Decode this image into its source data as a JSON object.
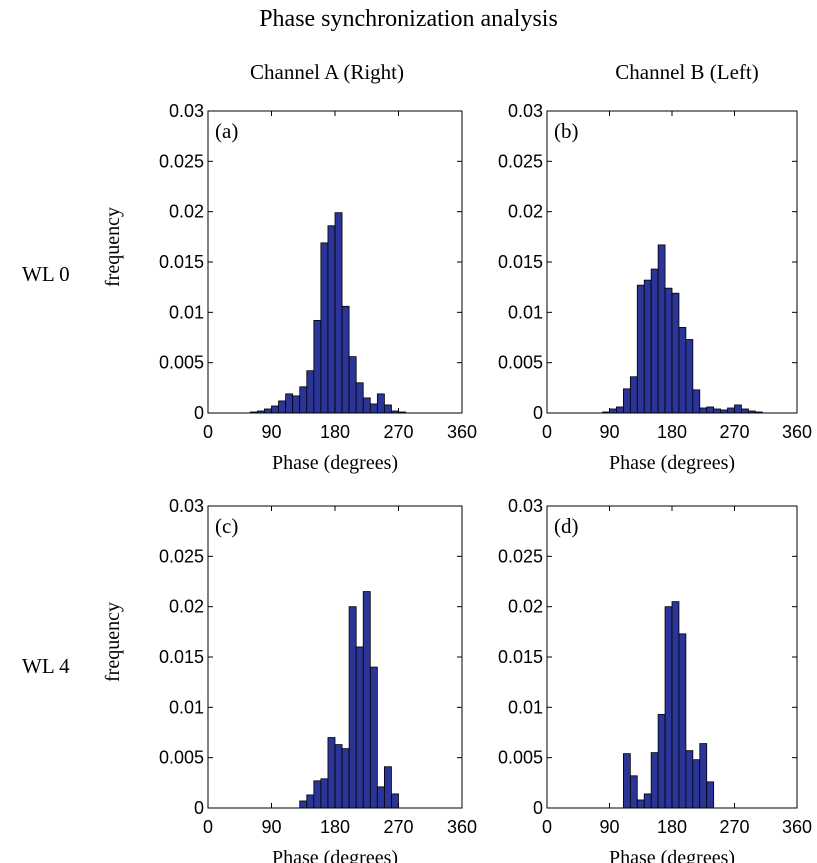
{
  "title": "Phase synchronization analysis",
  "column_labels": [
    "Channel A (Right)",
    "Channel B (Left)"
  ],
  "row_labels": [
    "WL 0",
    "WL 4"
  ],
  "colors": {
    "bar_fill": "#2b3598",
    "bar_edge": "#000000",
    "axes": "#000000"
  },
  "chart_data": [
    {
      "type": "bar",
      "panel_label": "(a)",
      "xlabel": "Phase (degrees)",
      "ylabel": "frequency",
      "xlim": [
        0,
        360
      ],
      "ylim": [
        0,
        0.03
      ],
      "xticks": [
        0,
        90,
        180,
        270,
        360
      ],
      "yticks": [
        0,
        0.005,
        0.01,
        0.015,
        0.02,
        0.025,
        0.03
      ],
      "ytick_labels": [
        "0",
        "0.005",
        "0.01",
        "0.015",
        "0.02",
        "0.025",
        "0.03"
      ],
      "bin_width": 10,
      "bin_starts": [
        60,
        70,
        80,
        90,
        100,
        110,
        120,
        130,
        140,
        150,
        160,
        170,
        180,
        190,
        200,
        210,
        220,
        230,
        240,
        250,
        260,
        270
      ],
      "values": [
        0.0001,
        0.0002,
        0.0004,
        0.0007,
        0.0012,
        0.0019,
        0.0017,
        0.0026,
        0.0042,
        0.0092,
        0.0169,
        0.0186,
        0.0199,
        0.0106,
        0.0056,
        0.003,
        0.0015,
        0.0009,
        0.0019,
        0.0008,
        0.0002,
        0.0001
      ]
    },
    {
      "type": "bar",
      "panel_label": "(b)",
      "xlabel": "Phase (degrees)",
      "ylabel": "",
      "xlim": [
        0,
        360
      ],
      "ylim": [
        0,
        0.03
      ],
      "xticks": [
        0,
        90,
        180,
        270,
        360
      ],
      "yticks": [
        0,
        0.005,
        0.01,
        0.015,
        0.02,
        0.025,
        0.03
      ],
      "ytick_labels": [
        "0",
        "0.005",
        "0.01",
        "0.015",
        "0.02",
        "0.025",
        "0.03"
      ],
      "bin_width": 10,
      "bin_starts": [
        80,
        90,
        100,
        110,
        120,
        130,
        140,
        150,
        160,
        170,
        180,
        190,
        200,
        210,
        220,
        230,
        240,
        250,
        260,
        270,
        280,
        290,
        300
      ],
      "values": [
        0.0001,
        0.0004,
        0.0006,
        0.0024,
        0.0036,
        0.0127,
        0.0132,
        0.0143,
        0.0167,
        0.0124,
        0.0119,
        0.0085,
        0.0073,
        0.0023,
        0.0005,
        0.0006,
        0.0004,
        0.0003,
        0.0005,
        0.0008,
        0.0004,
        0.0002,
        0.0001
      ]
    },
    {
      "type": "bar",
      "panel_label": "(c)",
      "xlabel": "Phase (degrees)",
      "ylabel": "frequency",
      "xlim": [
        0,
        360
      ],
      "ylim": [
        0,
        0.03
      ],
      "xticks": [
        0,
        90,
        180,
        270,
        360
      ],
      "yticks": [
        0,
        0.005,
        0.01,
        0.015,
        0.02,
        0.025,
        0.03
      ],
      "ytick_labels": [
        "0",
        "0.005",
        "0.01",
        "0.015",
        "0.02",
        "0.025",
        "0.03"
      ],
      "bin_width": 10,
      "bin_starts": [
        130,
        140,
        150,
        160,
        170,
        180,
        190,
        200,
        210,
        220,
        230,
        240,
        250,
        260
      ],
      "values": [
        0.0007,
        0.0013,
        0.0027,
        0.0029,
        0.007,
        0.0063,
        0.0059,
        0.02,
        0.016,
        0.0215,
        0.014,
        0.0021,
        0.0041,
        0.0014
      ],
      "extra_bins": []
    },
    {
      "type": "bar",
      "panel_label": "(d)",
      "xlabel": "Phase (degrees)",
      "ylabel": "",
      "xlim": [
        0,
        360
      ],
      "ylim": [
        0,
        0.03
      ],
      "xticks": [
        0,
        90,
        180,
        270,
        360
      ],
      "yticks": [
        0,
        0.005,
        0.01,
        0.015,
        0.02,
        0.025,
        0.03
      ],
      "ytick_labels": [
        "0",
        "0.005",
        "0.01",
        "0.015",
        "0.02",
        "0.025",
        "0.03"
      ],
      "bin_width": 10,
      "bin_starts": [
        110,
        120,
        130,
        140,
        150,
        160,
        170,
        180,
        190,
        200,
        210,
        220,
        230,
        240
      ],
      "values": [
        0.0054,
        0.0032,
        0.0008,
        0.0014,
        0.0055,
        0.0093,
        0.02,
        0.0205,
        0.0173,
        0.0057,
        0.0048,
        0.0064,
        0.0026,
        0
      ]
    }
  ]
}
